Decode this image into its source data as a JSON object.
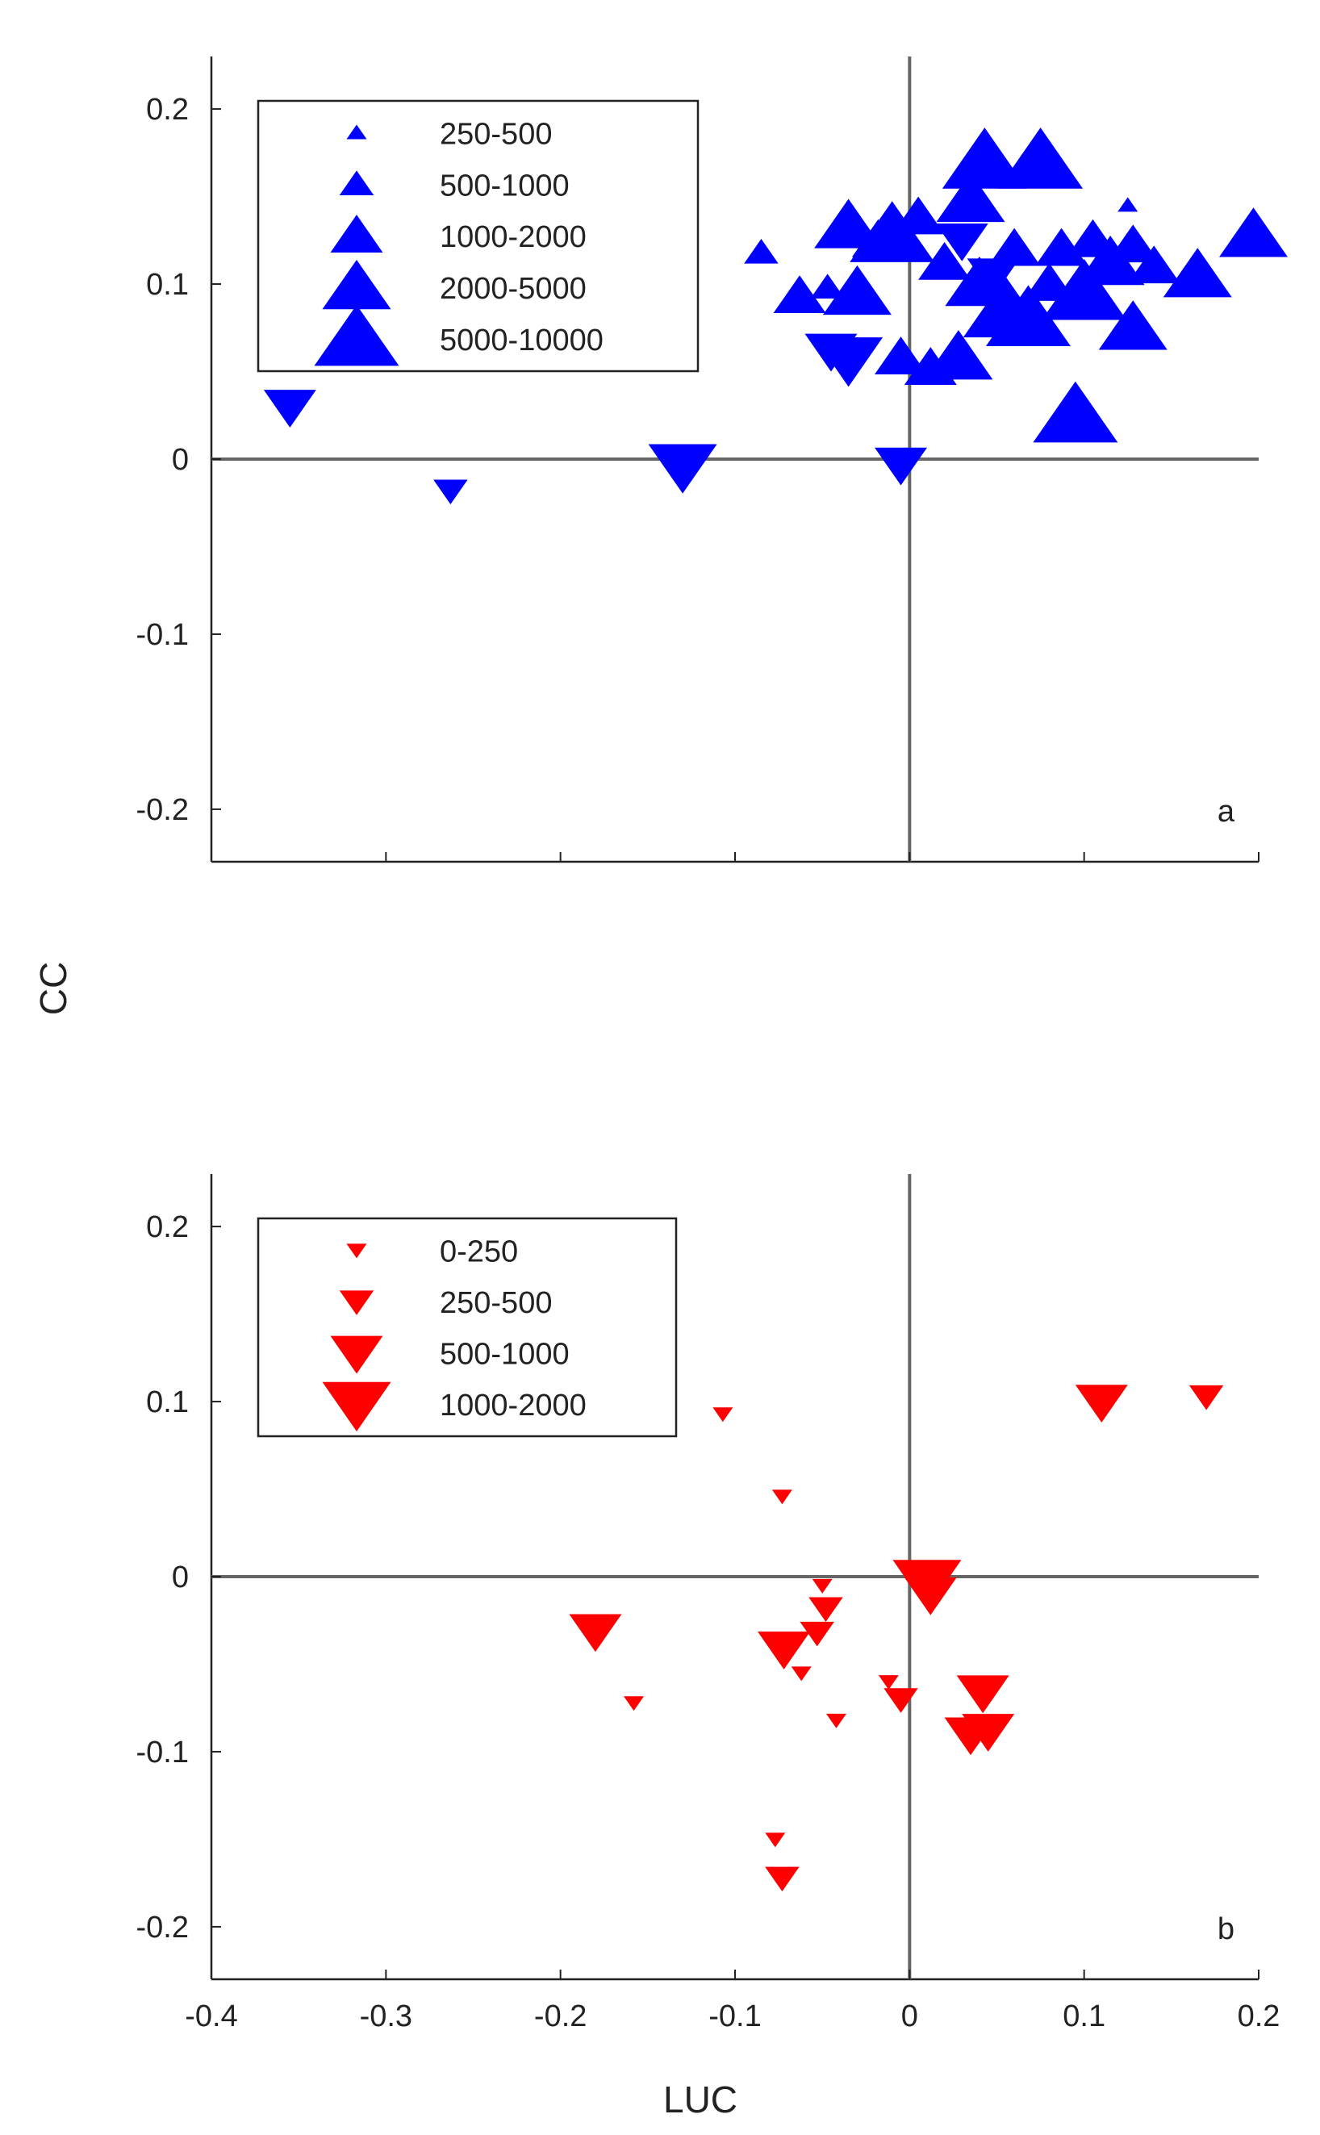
{
  "axes": {
    "xlabel": "LUC",
    "ylabel": "CC",
    "xlim": [
      -0.4,
      0.2
    ],
    "ylim": [
      -0.23,
      0.23
    ],
    "x_ticks": [
      "-0.4",
      "-0.3",
      "-0.2",
      "-0.1",
      "0",
      "0.1",
      "0.2"
    ],
    "y_ticks": [
      "0.2",
      "0.1",
      "0",
      "-0.1",
      "-0.2"
    ]
  },
  "chart_data": [
    {
      "type": "scatter",
      "panel_label": "a",
      "color": "#0000ff",
      "reference_lines": {
        "x": 0,
        "y": 0
      },
      "legend": {
        "position": "top-left",
        "entries": [
          "250-500",
          "500-1000",
          "1000-2000",
          "2000-5000",
          "5000-10000"
        ],
        "size_classes": [
          1,
          2,
          3,
          4,
          5
        ],
        "marker": "triangle-up"
      },
      "points": [
        {
          "x": -0.355,
          "y": 0.03,
          "size_class": 3,
          "marker": "triangle-down"
        },
        {
          "x": -0.263,
          "y": -0.018,
          "size_class": 2,
          "marker": "triangle-down"
        },
        {
          "x": -0.13,
          "y": -0.004,
          "size_class": 4,
          "marker": "triangle-down"
        },
        {
          "x": -0.005,
          "y": -0.003,
          "size_class": 3,
          "marker": "triangle-down"
        },
        {
          "x": -0.085,
          "y": 0.118,
          "size_class": 2,
          "marker": "triangle-up"
        },
        {
          "x": -0.063,
          "y": 0.093,
          "size_class": 3,
          "marker": "triangle-up"
        },
        {
          "x": -0.047,
          "y": 0.098,
          "size_class": 2,
          "marker": "triangle-up"
        },
        {
          "x": -0.03,
          "y": 0.095,
          "size_class": 4,
          "marker": "triangle-up"
        },
        {
          "x": -0.035,
          "y": 0.133,
          "size_class": 4,
          "marker": "triangle-up"
        },
        {
          "x": -0.018,
          "y": 0.125,
          "size_class": 3,
          "marker": "triangle-up"
        },
        {
          "x": -0.035,
          "y": 0.057,
          "size_class": 4,
          "marker": "triangle-down"
        },
        {
          "x": -0.045,
          "y": 0.062,
          "size_class": 3,
          "marker": "triangle-down"
        },
        {
          "x": -0.01,
          "y": 0.128,
          "size_class": 5,
          "marker": "triangle-up"
        },
        {
          "x": 0.005,
          "y": 0.138,
          "size_class": 3,
          "marker": "triangle-up"
        },
        {
          "x": -0.005,
          "y": 0.058,
          "size_class": 3,
          "marker": "triangle-up"
        },
        {
          "x": 0.012,
          "y": 0.052,
          "size_class": 3,
          "marker": "triangle-up"
        },
        {
          "x": 0.02,
          "y": 0.112,
          "size_class": 3,
          "marker": "triangle-up"
        },
        {
          "x": 0.028,
          "y": 0.058,
          "size_class": 4,
          "marker": "triangle-up"
        },
        {
          "x": 0.03,
          "y": 0.125,
          "size_class": 3,
          "marker": "triangle-down"
        },
        {
          "x": 0.035,
          "y": 0.148,
          "size_class": 4,
          "marker": "triangle-up"
        },
        {
          "x": 0.043,
          "y": 0.17,
          "size_class": 5,
          "marker": "triangle-up"
        },
        {
          "x": 0.04,
          "y": 0.1,
          "size_class": 4,
          "marker": "triangle-up"
        },
        {
          "x": 0.048,
          "y": 0.105,
          "size_class": 3,
          "marker": "triangle-down"
        },
        {
          "x": 0.055,
          "y": 0.085,
          "size_class": 5,
          "marker": "triangle-up"
        },
        {
          "x": 0.06,
          "y": 0.12,
          "size_class": 3,
          "marker": "triangle-up"
        },
        {
          "x": 0.068,
          "y": 0.08,
          "size_class": 5,
          "marker": "triangle-up"
        },
        {
          "x": 0.075,
          "y": 0.17,
          "size_class": 5,
          "marker": "triangle-up"
        },
        {
          "x": 0.08,
          "y": 0.1,
          "size_class": 3,
          "marker": "triangle-up"
        },
        {
          "x": 0.087,
          "y": 0.12,
          "size_class": 3,
          "marker": "triangle-up"
        },
        {
          "x": 0.095,
          "y": 0.025,
          "size_class": 5,
          "marker": "triangle-up"
        },
        {
          "x": 0.1,
          "y": 0.095,
          "size_class": 5,
          "marker": "triangle-up"
        },
        {
          "x": 0.105,
          "y": 0.125,
          "size_class": 3,
          "marker": "triangle-up"
        },
        {
          "x": 0.115,
          "y": 0.112,
          "size_class": 4,
          "marker": "triangle-up"
        },
        {
          "x": 0.125,
          "y": 0.145,
          "size_class": 1,
          "marker": "triangle-up"
        },
        {
          "x": 0.128,
          "y": 0.122,
          "size_class": 3,
          "marker": "triangle-up"
        },
        {
          "x": 0.128,
          "y": 0.075,
          "size_class": 4,
          "marker": "triangle-up"
        },
        {
          "x": 0.14,
          "y": 0.11,
          "size_class": 3,
          "marker": "triangle-up"
        },
        {
          "x": 0.165,
          "y": 0.105,
          "size_class": 4,
          "marker": "triangle-up"
        },
        {
          "x": 0.197,
          "y": 0.128,
          "size_class": 4,
          "marker": "triangle-up"
        }
      ]
    },
    {
      "type": "scatter",
      "panel_label": "b",
      "color": "#ff0000",
      "reference_lines": {
        "x": 0,
        "y": 0
      },
      "legend": {
        "position": "top-left",
        "entries": [
          "0-250",
          "250-500",
          "500-1000",
          "1000-2000"
        ],
        "size_classes": [
          1,
          2,
          3,
          4
        ],
        "marker": "triangle-down"
      },
      "points": [
        {
          "x": -0.107,
          "y": 0.093,
          "size_class": 1,
          "marker": "triangle-down"
        },
        {
          "x": -0.073,
          "y": 0.046,
          "size_class": 1,
          "marker": "triangle-down"
        },
        {
          "x": -0.18,
          "y": -0.031,
          "size_class": 3,
          "marker": "triangle-down"
        },
        {
          "x": -0.158,
          "y": -0.072,
          "size_class": 1,
          "marker": "triangle-down"
        },
        {
          "x": -0.072,
          "y": -0.041,
          "size_class": 3,
          "marker": "triangle-down"
        },
        {
          "x": -0.062,
          "y": -0.055,
          "size_class": 1,
          "marker": "triangle-down"
        },
        {
          "x": -0.053,
          "y": -0.032,
          "size_class": 2,
          "marker": "triangle-down"
        },
        {
          "x": -0.048,
          "y": -0.018,
          "size_class": 2,
          "marker": "triangle-down"
        },
        {
          "x": -0.05,
          "y": -0.005,
          "size_class": 1,
          "marker": "triangle-down"
        },
        {
          "x": -0.042,
          "y": -0.082,
          "size_class": 1,
          "marker": "triangle-down"
        },
        {
          "x": -0.077,
          "y": -0.15,
          "size_class": 1,
          "marker": "triangle-down"
        },
        {
          "x": -0.073,
          "y": -0.172,
          "size_class": 2,
          "marker": "triangle-down"
        },
        {
          "x": -0.012,
          "y": -0.06,
          "size_class": 1,
          "marker": "triangle-down"
        },
        {
          "x": -0.005,
          "y": -0.07,
          "size_class": 2,
          "marker": "triangle-down"
        },
        {
          "x": 0.01,
          "y": -0.003,
          "size_class": 4,
          "marker": "triangle-down"
        },
        {
          "x": 0.012,
          "y": -0.01,
          "size_class": 3,
          "marker": "triangle-down"
        },
        {
          "x": 0.042,
          "y": -0.066,
          "size_class": 3,
          "marker": "triangle-down"
        },
        {
          "x": 0.035,
          "y": -0.09,
          "size_class": 3,
          "marker": "triangle-down"
        },
        {
          "x": 0.045,
          "y": -0.088,
          "size_class": 3,
          "marker": "triangle-down"
        },
        {
          "x": 0.11,
          "y": 0.1,
          "size_class": 3,
          "marker": "triangle-down"
        },
        {
          "x": 0.17,
          "y": 0.103,
          "size_class": 2,
          "marker": "triangle-down"
        }
      ]
    }
  ]
}
